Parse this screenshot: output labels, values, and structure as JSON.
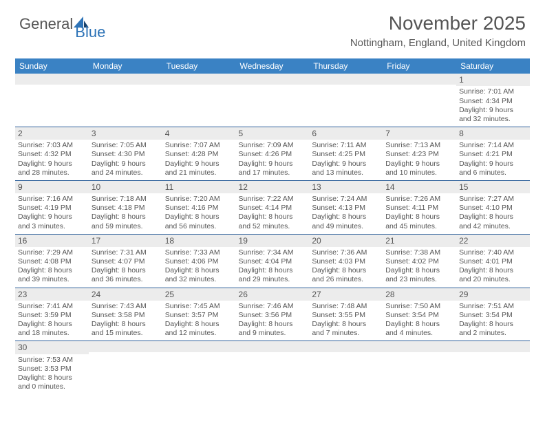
{
  "logo": {
    "text_general": "General",
    "text_blue": "Blue"
  },
  "title": "November 2025",
  "location": "Nottingham, England, United Kingdom",
  "colors": {
    "header_bg": "#3a82c4",
    "header_text": "#ffffff",
    "daynum_bg": "#ececec",
    "row_border": "#2d5f9a",
    "text": "#555555",
    "logo_blue": "#2d73b7"
  },
  "day_headers": [
    "Sunday",
    "Monday",
    "Tuesday",
    "Wednesday",
    "Thursday",
    "Friday",
    "Saturday"
  ],
  "weeks": [
    [
      {
        "n": "",
        "sunrise": "",
        "sunset": "",
        "daylight": ""
      },
      {
        "n": "",
        "sunrise": "",
        "sunset": "",
        "daylight": ""
      },
      {
        "n": "",
        "sunrise": "",
        "sunset": "",
        "daylight": ""
      },
      {
        "n": "",
        "sunrise": "",
        "sunset": "",
        "daylight": ""
      },
      {
        "n": "",
        "sunrise": "",
        "sunset": "",
        "daylight": ""
      },
      {
        "n": "",
        "sunrise": "",
        "sunset": "",
        "daylight": ""
      },
      {
        "n": "1",
        "sunrise": "Sunrise: 7:01 AM",
        "sunset": "Sunset: 4:34 PM",
        "daylight": "Daylight: 9 hours and 32 minutes."
      }
    ],
    [
      {
        "n": "2",
        "sunrise": "Sunrise: 7:03 AM",
        "sunset": "Sunset: 4:32 PM",
        "daylight": "Daylight: 9 hours and 28 minutes."
      },
      {
        "n": "3",
        "sunrise": "Sunrise: 7:05 AM",
        "sunset": "Sunset: 4:30 PM",
        "daylight": "Daylight: 9 hours and 24 minutes."
      },
      {
        "n": "4",
        "sunrise": "Sunrise: 7:07 AM",
        "sunset": "Sunset: 4:28 PM",
        "daylight": "Daylight: 9 hours and 21 minutes."
      },
      {
        "n": "5",
        "sunrise": "Sunrise: 7:09 AM",
        "sunset": "Sunset: 4:26 PM",
        "daylight": "Daylight: 9 hours and 17 minutes."
      },
      {
        "n": "6",
        "sunrise": "Sunrise: 7:11 AM",
        "sunset": "Sunset: 4:25 PM",
        "daylight": "Daylight: 9 hours and 13 minutes."
      },
      {
        "n": "7",
        "sunrise": "Sunrise: 7:13 AM",
        "sunset": "Sunset: 4:23 PM",
        "daylight": "Daylight: 9 hours and 10 minutes."
      },
      {
        "n": "8",
        "sunrise": "Sunrise: 7:14 AM",
        "sunset": "Sunset: 4:21 PM",
        "daylight": "Daylight: 9 hours and 6 minutes."
      }
    ],
    [
      {
        "n": "9",
        "sunrise": "Sunrise: 7:16 AM",
        "sunset": "Sunset: 4:19 PM",
        "daylight": "Daylight: 9 hours and 3 minutes."
      },
      {
        "n": "10",
        "sunrise": "Sunrise: 7:18 AM",
        "sunset": "Sunset: 4:18 PM",
        "daylight": "Daylight: 8 hours and 59 minutes."
      },
      {
        "n": "11",
        "sunrise": "Sunrise: 7:20 AM",
        "sunset": "Sunset: 4:16 PM",
        "daylight": "Daylight: 8 hours and 56 minutes."
      },
      {
        "n": "12",
        "sunrise": "Sunrise: 7:22 AM",
        "sunset": "Sunset: 4:14 PM",
        "daylight": "Daylight: 8 hours and 52 minutes."
      },
      {
        "n": "13",
        "sunrise": "Sunrise: 7:24 AM",
        "sunset": "Sunset: 4:13 PM",
        "daylight": "Daylight: 8 hours and 49 minutes."
      },
      {
        "n": "14",
        "sunrise": "Sunrise: 7:26 AM",
        "sunset": "Sunset: 4:11 PM",
        "daylight": "Daylight: 8 hours and 45 minutes."
      },
      {
        "n": "15",
        "sunrise": "Sunrise: 7:27 AM",
        "sunset": "Sunset: 4:10 PM",
        "daylight": "Daylight: 8 hours and 42 minutes."
      }
    ],
    [
      {
        "n": "16",
        "sunrise": "Sunrise: 7:29 AM",
        "sunset": "Sunset: 4:08 PM",
        "daylight": "Daylight: 8 hours and 39 minutes."
      },
      {
        "n": "17",
        "sunrise": "Sunrise: 7:31 AM",
        "sunset": "Sunset: 4:07 PM",
        "daylight": "Daylight: 8 hours and 36 minutes."
      },
      {
        "n": "18",
        "sunrise": "Sunrise: 7:33 AM",
        "sunset": "Sunset: 4:06 PM",
        "daylight": "Daylight: 8 hours and 32 minutes."
      },
      {
        "n": "19",
        "sunrise": "Sunrise: 7:34 AM",
        "sunset": "Sunset: 4:04 PM",
        "daylight": "Daylight: 8 hours and 29 minutes."
      },
      {
        "n": "20",
        "sunrise": "Sunrise: 7:36 AM",
        "sunset": "Sunset: 4:03 PM",
        "daylight": "Daylight: 8 hours and 26 minutes."
      },
      {
        "n": "21",
        "sunrise": "Sunrise: 7:38 AM",
        "sunset": "Sunset: 4:02 PM",
        "daylight": "Daylight: 8 hours and 23 minutes."
      },
      {
        "n": "22",
        "sunrise": "Sunrise: 7:40 AM",
        "sunset": "Sunset: 4:01 PM",
        "daylight": "Daylight: 8 hours and 20 minutes."
      }
    ],
    [
      {
        "n": "23",
        "sunrise": "Sunrise: 7:41 AM",
        "sunset": "Sunset: 3:59 PM",
        "daylight": "Daylight: 8 hours and 18 minutes."
      },
      {
        "n": "24",
        "sunrise": "Sunrise: 7:43 AM",
        "sunset": "Sunset: 3:58 PM",
        "daylight": "Daylight: 8 hours and 15 minutes."
      },
      {
        "n": "25",
        "sunrise": "Sunrise: 7:45 AM",
        "sunset": "Sunset: 3:57 PM",
        "daylight": "Daylight: 8 hours and 12 minutes."
      },
      {
        "n": "26",
        "sunrise": "Sunrise: 7:46 AM",
        "sunset": "Sunset: 3:56 PM",
        "daylight": "Daylight: 8 hours and 9 minutes."
      },
      {
        "n": "27",
        "sunrise": "Sunrise: 7:48 AM",
        "sunset": "Sunset: 3:55 PM",
        "daylight": "Daylight: 8 hours and 7 minutes."
      },
      {
        "n": "28",
        "sunrise": "Sunrise: 7:50 AM",
        "sunset": "Sunset: 3:54 PM",
        "daylight": "Daylight: 8 hours and 4 minutes."
      },
      {
        "n": "29",
        "sunrise": "Sunrise: 7:51 AM",
        "sunset": "Sunset: 3:54 PM",
        "daylight": "Daylight: 8 hours and 2 minutes."
      }
    ],
    [
      {
        "n": "30",
        "sunrise": "Sunrise: 7:53 AM",
        "sunset": "Sunset: 3:53 PM",
        "daylight": "Daylight: 8 hours and 0 minutes."
      },
      {
        "n": "",
        "sunrise": "",
        "sunset": "",
        "daylight": ""
      },
      {
        "n": "",
        "sunrise": "",
        "sunset": "",
        "daylight": ""
      },
      {
        "n": "",
        "sunrise": "",
        "sunset": "",
        "daylight": ""
      },
      {
        "n": "",
        "sunrise": "",
        "sunset": "",
        "daylight": ""
      },
      {
        "n": "",
        "sunrise": "",
        "sunset": "",
        "daylight": ""
      },
      {
        "n": "",
        "sunrise": "",
        "sunset": "",
        "daylight": ""
      }
    ]
  ]
}
